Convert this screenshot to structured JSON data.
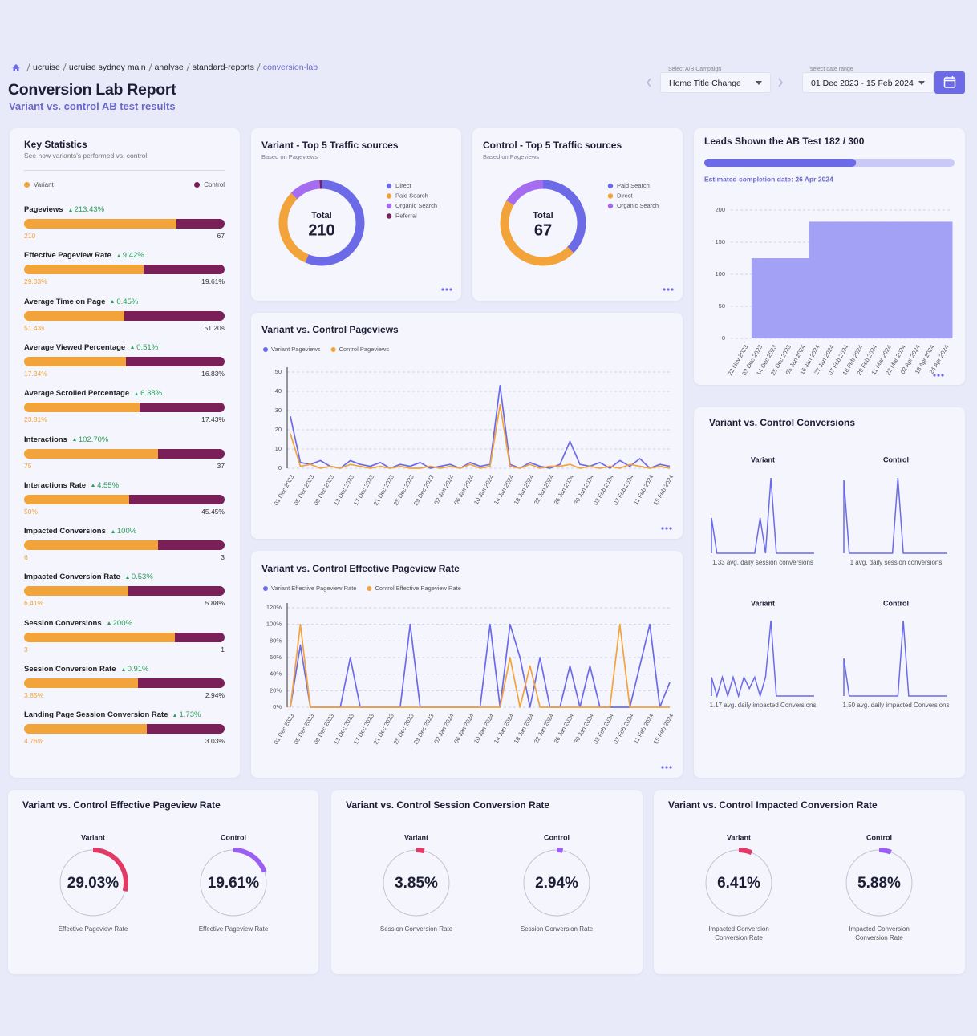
{
  "breadcrumb": [
    "ucruise",
    "ucruise sydney main",
    "analyse",
    "standard-reports",
    "conversion-lab"
  ],
  "header": {
    "title": "Conversion Lab Report",
    "subtitle": "Variant vs. control AB test results"
  },
  "controls": {
    "campaign_label": "Select A/B Campaign",
    "campaign": "Home Title Change",
    "date_label": "select date range",
    "date_range": "01 Dec 2023 - 15 Feb 2024"
  },
  "key_stats": {
    "title": "Key Statistics",
    "subtitle": "See how variants's performed vs. control",
    "legend": [
      {
        "name": "Variant",
        "color": "#f2a33a"
      },
      {
        "name": "Control",
        "color": "#7a1f57"
      }
    ],
    "rows": [
      {
        "name": "Pageviews",
        "change": "213.43%",
        "variant": 210,
        "control": 67
      },
      {
        "name": "Effective Pageview Rate",
        "change": "9.42%",
        "variant": 29.03,
        "variant_label": "29.03%",
        "control": 19.61,
        "control_label": "19.61%"
      },
      {
        "name": "Average Time on Page",
        "change": "0.45%",
        "variant": 51.43,
        "variant_label": "51.43s",
        "control": 51.2,
        "control_label": "51.20s"
      },
      {
        "name": "Average Viewed Percentage",
        "change": "0.51%",
        "variant": 17.34,
        "variant_label": "17.34%",
        "control": 16.83,
        "control_label": "16.83%"
      },
      {
        "name": "Average Scrolled Percentage",
        "change": "6.38%",
        "variant": 23.81,
        "variant_label": "23.81%",
        "control": 17.43,
        "control_label": "17.43%"
      },
      {
        "name": "Interactions",
        "change": "102.70%",
        "variant": 75,
        "control": 37
      },
      {
        "name": "Interactions Rate",
        "change": "4.55%",
        "variant": 50,
        "variant_label": "50%",
        "control": 45.45,
        "control_label": "45.45%"
      },
      {
        "name": "Impacted Conversions",
        "change": "100%",
        "variant": 6,
        "control": 3
      },
      {
        "name": "Impacted Conversion Rate",
        "change": "0.53%",
        "variant": 6.41,
        "variant_label": "6.41%",
        "control": 5.88,
        "control_label": "5.88%"
      },
      {
        "name": "Session Conversions",
        "change": "200%",
        "variant": 3,
        "control": 1
      },
      {
        "name": "Session Conversion Rate",
        "change": "0.91%",
        "variant": 3.85,
        "variant_label": "3.85%",
        "control": 2.94,
        "control_label": "2.94%"
      },
      {
        "name": "Landing Page Session Conversion Rate",
        "change": "1.73%",
        "variant": 4.76,
        "variant_label": "4.76%",
        "control": 3.03,
        "control_label": "3.03%"
      }
    ]
  },
  "traffic": [
    {
      "title": "Variant - Top 5 Traffic sources",
      "subtitle": "Based on Pageviews",
      "total_label": "Total",
      "total": 210,
      "segments": [
        {
          "name": "Direct",
          "value": 118,
          "color": "#6d6ae8"
        },
        {
          "name": "Paid Search",
          "value": 65,
          "color": "#f2a33a"
        },
        {
          "name": "Organic Search",
          "value": 25,
          "color": "#a66cf0"
        },
        {
          "name": "Referral",
          "value": 2,
          "color": "#7a1f57"
        }
      ]
    },
    {
      "title": "Control - Top 5 Traffic sources",
      "subtitle": "Based on Pageviews",
      "total_label": "Total",
      "total": 67,
      "segments": [
        {
          "name": "Paid Search",
          "value": 25,
          "color": "#6d6ae8"
        },
        {
          "name": "Direct",
          "value": 31,
          "color": "#f2a33a"
        },
        {
          "name": "Organic Search",
          "value": 11,
          "color": "#a66cf0"
        }
      ]
    }
  ],
  "leads": {
    "title": "Leads Shown the AB Test 182 / 300",
    "progress": 182,
    "progress_max": 300,
    "completion": "Estimated completion date: 26 Apr 2024"
  },
  "chart_data": [
    {
      "type": "line",
      "title": "Variant vs. Control Pageviews",
      "categories": [
        "01 Dec 2023",
        null,
        "05 Dec 2023",
        null,
        "09 Dec 2023",
        null,
        "13 Dec 2023",
        null,
        "17 Dec 2023",
        null,
        "21 Dec 2023",
        null,
        "25 Dec 2023",
        null,
        "29 Dec 2023",
        null,
        "02 Jan 2024",
        null,
        "06 Jan 2024",
        null,
        "10 Jan 2024",
        null,
        "14 Jan 2024",
        null,
        "18 Jan 2024",
        null,
        "22 Jan 2024",
        null,
        "26 Jan 2024",
        null,
        "30 Jan 2024",
        null,
        "03 Feb 2024",
        null,
        "07 Feb 2024",
        null,
        "11 Feb 2024",
        null,
        "15 Feb 2024"
      ],
      "series": [
        {
          "name": "Variant Pageviews",
          "color": "#6d6ae8",
          "values": [
            27,
            3,
            2,
            4,
            1,
            0,
            4,
            2,
            1,
            3,
            0,
            2,
            1,
            3,
            0,
            1,
            2,
            0,
            3,
            1,
            2,
            43,
            2,
            0,
            3,
            1,
            0,
            2,
            14,
            2,
            1,
            3,
            0,
            4,
            1,
            5,
            0,
            2,
            1
          ]
        },
        {
          "name": "Control Pageviews",
          "color": "#f2a33a",
          "values": [
            18,
            1,
            2,
            0,
            1,
            0,
            2,
            1,
            0,
            1,
            0,
            1,
            0,
            0,
            1,
            0,
            1,
            0,
            2,
            0,
            1,
            33,
            1,
            0,
            2,
            0,
            1,
            1,
            2,
            0,
            1,
            0,
            1,
            0,
            2,
            1,
            0,
            1,
            0
          ]
        }
      ],
      "ylim": [
        0,
        50
      ],
      "yticks": [
        0,
        10,
        20,
        30,
        40,
        50
      ],
      "grid": true
    },
    {
      "type": "line",
      "title": "Variant vs. Control Effective Pageview Rate",
      "categories": [
        "01 Dec 2023",
        null,
        "05 Dec 2023",
        null,
        "09 Dec 2023",
        null,
        "13 Dec 2023",
        null,
        "17 Dec 2023",
        null,
        "21 Dec 2023",
        null,
        "25 Dec 2023",
        null,
        "29 Dec 2023",
        null,
        "02 Jan 2024",
        null,
        "06 Jan 2024",
        null,
        "10 Jan 2024",
        null,
        "14 Jan 2024",
        null,
        "18 Jan 2024",
        null,
        "22 Jan 2024",
        null,
        "26 Jan 2024",
        null,
        "30 Jan 2024",
        null,
        "03 Feb 2024",
        null,
        "07 Feb 2024",
        null,
        "11 Feb 2024",
        null,
        "15 Feb 2024"
      ],
      "series": [
        {
          "name": "Variant Effective Pageview Rate",
          "color": "#6d6ae8",
          "values": [
            0,
            75,
            0,
            0,
            0,
            0,
            60,
            0,
            0,
            0,
            0,
            0,
            100,
            0,
            0,
            0,
            0,
            0,
            0,
            0,
            100,
            0,
            100,
            60,
            0,
            60,
            0,
            0,
            50,
            0,
            50,
            0,
            0,
            0,
            0,
            50,
            100,
            0,
            30
          ]
        },
        {
          "name": "Control Effective Pageview Rate",
          "color": "#f2a33a",
          "values": [
            0,
            100,
            0,
            0,
            0,
            0,
            0,
            0,
            0,
            0,
            0,
            0,
            0,
            0,
            0,
            0,
            0,
            0,
            0,
            0,
            0,
            0,
            60,
            0,
            50,
            0,
            0,
            0,
            0,
            0,
            0,
            0,
            0,
            100,
            0,
            0,
            0,
            0,
            0
          ]
        }
      ],
      "ylim": [
        0,
        120
      ],
      "yticks": [
        {
          "value": 0,
          "label": "0%"
        },
        {
          "value": 20,
          "label": "20%"
        },
        {
          "value": 40,
          "label": "40%"
        },
        {
          "value": 60,
          "label": "60%"
        },
        {
          "value": 80,
          "label": "80%"
        },
        {
          "value": 100,
          "label": "100%"
        },
        {
          "value": 120,
          "label": "120%"
        }
      ],
      "grid": true
    },
    {
      "type": "area",
      "categories": [
        "22 Nov 2023",
        "03 Dec 2023",
        "14 Dec 2023",
        "25 Dec 2023",
        "05 Jan 2024",
        "16 Jan 2024",
        "27 Jan 2024",
        "07 Feb 2024",
        "18 Feb 2024",
        "29 Feb 2024",
        "11 Mar 2024",
        "22 Mar 2024",
        "02 Apr 2024",
        "13 Apr 2024",
        "24 Apr 2024"
      ],
      "values": [
        0,
        125,
        125,
        125,
        125,
        182,
        182,
        182,
        182,
        182,
        182,
        182,
        182,
        182,
        182
      ],
      "color": "#a3a1f6",
      "ylim": [
        0,
        210
      ],
      "yticks": [
        0,
        50,
        100,
        150,
        200
      ],
      "grid": true
    }
  ],
  "conversions": {
    "title": "Variant vs. Control Conversions",
    "color": "#6d6ae8",
    "panels": [
      {
        "name": "Variant",
        "caption": "1.33 avg. daily session conversions",
        "values": [
          0.47,
          0,
          0,
          0,
          0,
          0,
          0,
          0,
          0,
          0.47,
          0,
          1,
          0,
          0,
          0,
          0,
          0,
          0,
          0,
          0
        ]
      },
      {
        "name": "Control",
        "caption": "1 avg. daily session conversions",
        "values": [
          0.97,
          0,
          0,
          0,
          0,
          0,
          0,
          0,
          0,
          0,
          1,
          0,
          0,
          0,
          0,
          0,
          0,
          0,
          0,
          0
        ]
      },
      {
        "name": "Variant",
        "caption": "1.17 avg. daily impacted Conversions",
        "values": [
          0.25,
          0,
          0.25,
          0,
          0.25,
          0,
          0.25,
          0.1,
          0.25,
          0,
          0.25,
          1,
          0,
          0,
          0,
          0,
          0,
          0,
          0,
          0
        ]
      },
      {
        "name": "Control",
        "caption": "1.50 avg. daily impacted Conversions",
        "values": [
          0.5,
          0,
          0,
          0,
          0,
          0,
          0,
          0,
          0,
          0,
          0,
          1,
          0,
          0,
          0,
          0,
          0,
          0,
          0,
          0
        ]
      }
    ]
  },
  "gauges": [
    {
      "title": "Variant vs. Control Effective Pageview Rate",
      "items": [
        {
          "name": "Variant",
          "value": 29.03,
          "label": "29.03%",
          "caption": "Effective Pageview Rate",
          "color": "#e23a64"
        },
        {
          "name": "Control",
          "value": 19.61,
          "label": "19.61%",
          "caption": "Effective Pageview Rate",
          "color": "#9a5ef2"
        }
      ]
    },
    {
      "title": "Variant vs. Control Session Conversion Rate",
      "items": [
        {
          "name": "Variant",
          "value": 3.85,
          "label": "3.85%",
          "caption": "Session Conversion Rate",
          "color": "#e23a64"
        },
        {
          "name": "Control",
          "value": 2.94,
          "label": "2.94%",
          "caption": "Session Conversion Rate",
          "color": "#9a5ef2"
        }
      ]
    },
    {
      "title": "Variant vs. Control Impacted Conversion Rate",
      "items": [
        {
          "name": "Variant",
          "value": 6.41,
          "label": "6.41%",
          "caption": "Impacted Conversion Conversion Rate",
          "color": "#e23a64"
        },
        {
          "name": "Control",
          "value": 5.88,
          "label": "5.88%",
          "caption": "Impacted Conversion Conversion Rate",
          "color": "#9a5ef2"
        }
      ]
    }
  ]
}
